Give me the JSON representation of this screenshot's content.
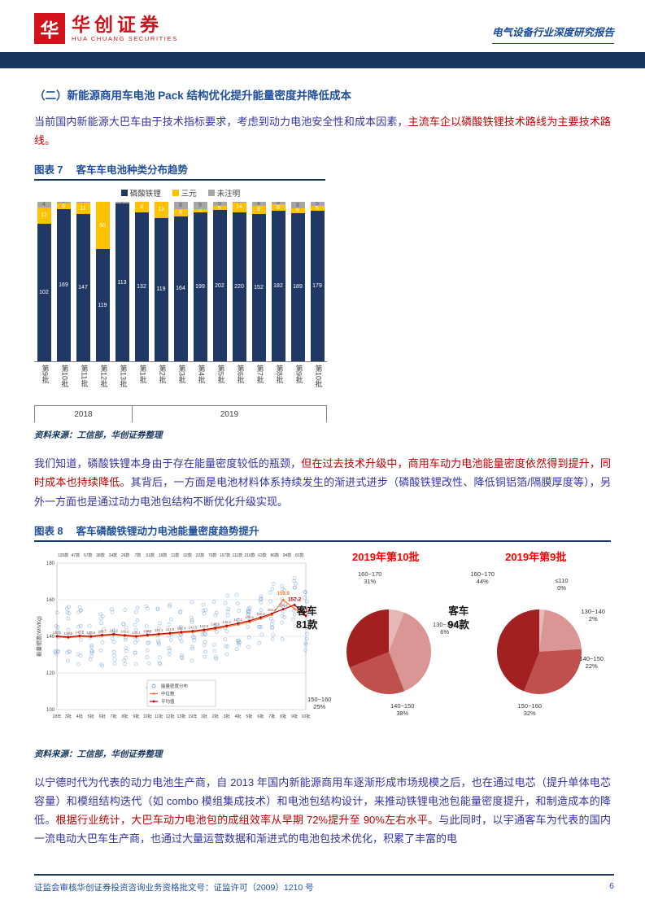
{
  "header": {
    "logo_cn": "华创证券",
    "logo_en": "HUA CHUANG SECURITIES",
    "logo_glyph": "华",
    "report_type": "电气设备行业深度研究报告"
  },
  "section_heading": "（二）新能源商用车电池 Pack 结构优化提升能量密度并降低成本",
  "paragraphs": {
    "p1": [
      {
        "text": "当前国内新能源大巴车由于技术指标要求，考虑到动力电池安全性和成本因素，",
        "color": "blue"
      },
      {
        "text": "主流车企以磷酸铁锂技术路线为主要技术路线。",
        "color": "red"
      }
    ],
    "p2": [
      {
        "text": "我们知道，磷酸铁锂本身由于存在能量密度较低的瓶颈，",
        "color": "blue"
      },
      {
        "text": "但在过去技术升级中，商用车动力电池能量密度依然得到提升，同时成本也持续降低。",
        "color": "red"
      },
      {
        "text": "其背后，一方面是电池材料体系持续发生的渐进式进步（磷酸铁锂改性、降低铜铝箔/隔膜厚度等），另外一方面也是通过动力电池包结构不断优化升级实现。",
        "color": "blue"
      }
    ],
    "p3": [
      {
        "text": "以宁德时代为代表的动力电池生产商，自 2013 年国内新能源商用车逐渐形成市场规模之后，也在通过电芯（提升单体电芯容量）和模组结构迭代（如 combo 模组集成技术）和电池包结构设计，来推动铁锂电池包能量密度提升，和制造成本的降低。",
        "color": "blue"
      },
      {
        "text": "根据行业统计，大巴车动力电池包的成组效率从早期 72%提升至 90%左右水平。",
        "color": "red"
      },
      {
        "text": "与此同时，以宇通客车为代表的国内一流电动大巴车生产商，也通过大量运营数据和渐进式的电池包技术优化，积累了丰富的电",
        "color": "blue"
      }
    ]
  },
  "figures": {
    "fig7": {
      "label": "图表 7",
      "title": "客车车电池种类分布趋势",
      "source": "资料来源：工信部，华创证券整理"
    },
    "fig8": {
      "label": "图表 8",
      "title": "客车磷酸铁锂动力电池能量密度趋势提升",
      "source": "资料来源：工信部，华创证券整理"
    }
  },
  "footer": {
    "text": "证监会审核华创证券投资咨询业务资格批文号：证监许可（2009）1210 号",
    "page_number": "6"
  },
  "chart_data": [
    {
      "id": "bus-battery-type-distribution",
      "type": "bar",
      "stacked": "percent",
      "title": "客车车电池种类分布趋势",
      "categories": [
        "第9批",
        "第10批",
        "第11批",
        "第12批",
        "第13批",
        "第1批",
        "第2批",
        "第3批",
        "第4批",
        "第5批",
        "第6批",
        "第7批",
        "第8批",
        "第9批",
        "第10批"
      ],
      "year_groups": [
        {
          "label": "2018",
          "span": 5
        },
        {
          "label": "2019",
          "span": 10
        }
      ],
      "series": [
        {
          "name": "磷酸铁锂",
          "color": "#1F3864",
          "values": [
            102,
            169,
            147,
            119,
            113,
            132,
            119,
            164,
            199,
            202,
            220,
            152,
            182,
            189,
            179
          ]
        },
        {
          "name": "三元",
          "color": "#FFC000",
          "values": [
            12,
            6,
            11,
            50,
            0,
            9,
            13,
            8,
            5,
            6,
            14,
            8,
            8,
            6,
            5
          ]
        },
        {
          "name": "未注明",
          "color": "#A6A6A6",
          "values": [
            4,
            2,
            1,
            0,
            1,
            0,
            0,
            8,
            9,
            5,
            1,
            4,
            3,
            8,
            5
          ]
        }
      ],
      "legend_position": "top"
    },
    {
      "id": "bus-energy-density-trend",
      "type": "scatter",
      "ylabel": "能量密度(Wh/Kg)",
      "ylim": [
        100,
        180
      ],
      "yticks": [
        100,
        120,
        140,
        160,
        180
      ],
      "counts_row": "135款 47款 57款 38款 24款 26款 7款 51款 19款 11款 32款 22款 70款 107款 111款 210款 63款 86款 94款 81款",
      "x_labels": [
        "18年",
        "3批",
        "4批",
        "5批",
        "6批",
        "7批",
        "8批",
        "9批",
        "10批",
        "11批",
        "12批",
        "13批",
        "19年",
        "1批",
        "2批",
        "3批",
        "4批",
        "5批",
        "6批",
        "7批",
        "8批",
        "9批",
        "10批"
      ],
      "series": [
        {
          "name": "能量密度分布",
          "type": "scatter",
          "color": "#6B9BD2"
        },
        {
          "name": "中位数",
          "type": "line",
          "color": "#ED7D31",
          "values": [
            139.7,
            139.2,
            139.9,
            139.6,
            140.3,
            140.8,
            140.2,
            139.7,
            140.3,
            140.9,
            141.4,
            141.9,
            142.4,
            143.0,
            144.0,
            145.2,
            146.4,
            147.8,
            149.6,
            151.8,
            159.9,
            155.0,
            151.5
          ]
        },
        {
          "name": "平均值",
          "type": "line",
          "color": "#C00000",
          "values": [
            140.1,
            139.6,
            140.3,
            140.0,
            140.7,
            141.2,
            140.6,
            140.1,
            140.8,
            141.3,
            141.8,
            142.4,
            142.9,
            143.6,
            144.6,
            145.8,
            147.1,
            148.5,
            150.3,
            152.4,
            154.8,
            157.2,
            151.2
          ]
        }
      ],
      "end_annotations": [
        "157.2",
        "151.2"
      ],
      "spike_annotation": "159.9"
    },
    {
      "id": "pie-2019-batch10",
      "type": "pie",
      "title": "2019年第10批",
      "unit": "客车 81款",
      "slices": [
        {
          "name": "130~140",
          "pct": 6,
          "color": "#E6B9B8"
        },
        {
          "name": "140~150",
          "pct": 38,
          "color": "#D99694"
        },
        {
          "name": "150~160",
          "pct": 25,
          "color": "#C0504D"
        },
        {
          "name": "160~170",
          "pct": 31,
          "color": "#A32020"
        }
      ]
    },
    {
      "id": "pie-2019-batch9",
      "type": "pie",
      "title": "2019年第9批",
      "unit": "客车 94款",
      "slices": [
        {
          "name": "≤110",
          "pct": 0,
          "color": "#632423"
        },
        {
          "name": "130~140",
          "pct": 2,
          "color": "#E6B9B8"
        },
        {
          "name": "140~150",
          "pct": 22,
          "color": "#D99694"
        },
        {
          "name": "150~160",
          "pct": 32,
          "color": "#C0504D"
        },
        {
          "name": "160~170",
          "pct": 44,
          "color": "#A32020"
        }
      ]
    }
  ]
}
